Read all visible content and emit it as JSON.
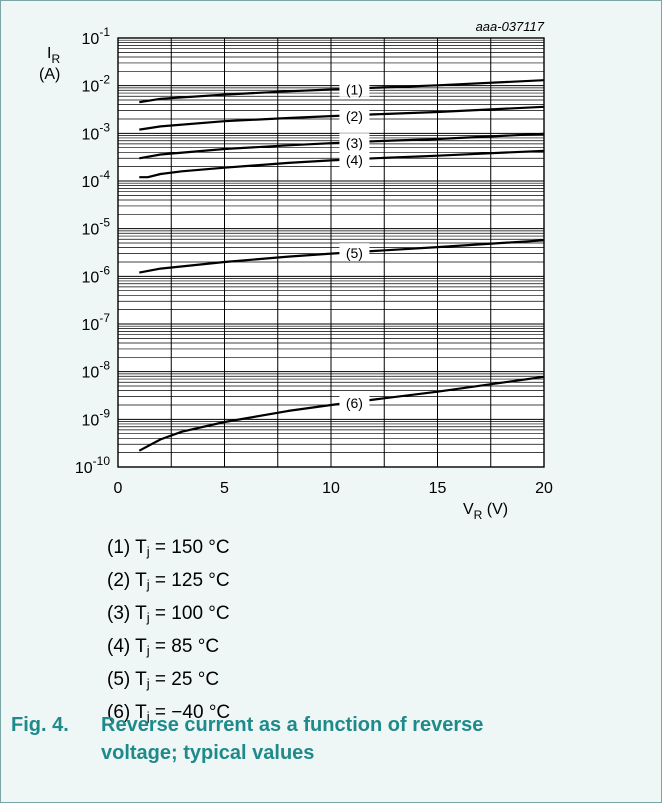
{
  "chart_data": {
    "type": "line",
    "code": "aaa-037117",
    "ylabel": "I",
    "ylabel_sub": "R",
    "ylabel_unit": "(A)",
    "xlabel": "V",
    "xlabel_sub": "R",
    "xlabel_unit": "(V)",
    "xlim": [
      0,
      20
    ],
    "ylim": [
      1e-10,
      0.1
    ],
    "y_scale": "log",
    "grid": true,
    "x_ticks": [
      "0",
      "5",
      "10",
      "15",
      "20"
    ],
    "y_tick_exponents": [
      "-1",
      "-2",
      "-3",
      "-4",
      "-5",
      "-6",
      "-7",
      "-8",
      "-9",
      "-10"
    ],
    "series": [
      {
        "name": "(1)",
        "x": [
          1,
          2,
          5,
          8,
          10,
          12,
          15,
          20
        ],
        "y": [
          0.0045,
          0.0053,
          0.0065,
          0.0076,
          0.0083,
          0.009,
          0.0102,
          0.013
        ]
      },
      {
        "name": "(2)",
        "x": [
          1,
          2,
          5,
          8,
          10,
          12,
          15,
          20
        ],
        "y": [
          0.0012,
          0.0014,
          0.0018,
          0.0021,
          0.0023,
          0.0025,
          0.0028,
          0.0036
        ]
      },
      {
        "name": "(3)",
        "x": [
          1,
          2,
          5,
          8,
          10,
          12,
          15,
          20
        ],
        "y": [
          0.0003,
          0.00036,
          0.00047,
          0.00056,
          0.00062,
          0.00068,
          0.00076,
          0.00098
        ]
      },
      {
        "name": "(4)",
        "x": [
          1,
          1.4,
          2,
          3,
          5,
          8,
          10,
          12,
          15,
          20
        ],
        "y": [
          0.00012,
          0.00012,
          0.00014,
          0.00016,
          0.00019,
          0.00024,
          0.00027,
          0.0003,
          0.00034,
          0.00043
        ]
      },
      {
        "name": "(5)",
        "x": [
          1,
          2,
          5,
          8,
          10,
          12,
          15,
          20
        ],
        "y": [
          1.2e-06,
          1.45e-06,
          2e-06,
          2.6e-06,
          3e-06,
          3.4e-06,
          4.1e-06,
          5.7e-06
        ]
      },
      {
        "name": "(6)",
        "x": [
          1,
          2,
          3,
          5,
          8,
          10,
          12,
          15,
          20
        ],
        "y": [
          2.2e-10,
          3.8e-10,
          5.5e-10,
          8.8e-10,
          1.5e-09,
          2e-09,
          2.6e-09,
          3.8e-09,
          7.8e-09
        ]
      }
    ]
  },
  "legend": [
    {
      "num": "(1) T",
      "sub": "j",
      "rest": " = 150 °C"
    },
    {
      "num": "(2) T",
      "sub": "j",
      "rest": " = 125 °C"
    },
    {
      "num": "(3) T",
      "sub": "j",
      "rest": " = 100 °C"
    },
    {
      "num": "(4) T",
      "sub": "j",
      "rest": " = 85 °C"
    },
    {
      "num": "(5) T",
      "sub": "j",
      "rest": " = 25 °C"
    },
    {
      "num": "(6) T",
      "sub": "j",
      "rest": " = −40 °C"
    }
  ],
  "caption": {
    "number": "Fig. 4.",
    "text": "Reverse current as a function of reverse voltage; typical values"
  },
  "colors": {
    "background": "#eef6f6",
    "plot_background": "#ffffff",
    "caption": "#1f8a8a",
    "curve": "#000000"
  }
}
